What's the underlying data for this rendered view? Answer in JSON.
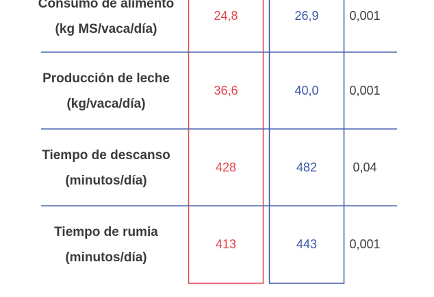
{
  "table": {
    "rows": [
      {
        "label": [
          "Consumo de alimento",
          "(kg MS/vaca/día)"
        ],
        "cells": [
          "24,8",
          "26,9",
          "0,001"
        ]
      },
      {
        "label": [
          "Producción de leche",
          "(kg/vaca/día)"
        ],
        "cells": [
          "36,6",
          "40,0",
          "0,001"
        ]
      },
      {
        "label": [
          "Tiempo de descanso",
          "(minutos/día)"
        ],
        "cells": [
          "428",
          "482",
          "0,04"
        ]
      },
      {
        "label": [
          "Tiempo de rumia",
          "(minutos/día)"
        ],
        "cells": [
          "413",
          "443",
          "0,001"
        ]
      }
    ]
  }
}
